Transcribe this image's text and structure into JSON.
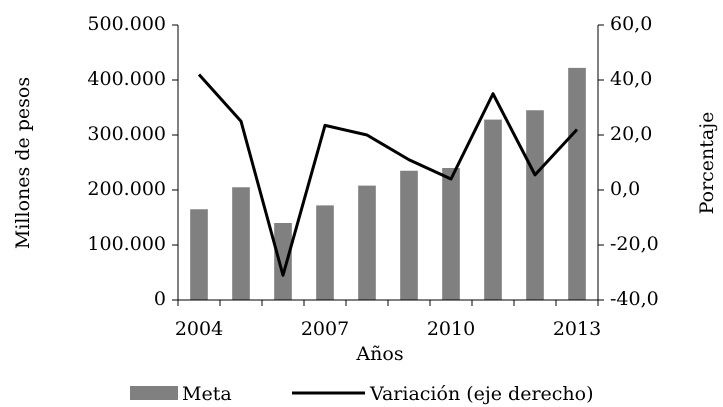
{
  "chart_data": {
    "type": "bar_line",
    "categories": [
      2004,
      null,
      null,
      2007,
      null,
      null,
      2010,
      null,
      null,
      2013
    ],
    "x_label": "Años",
    "y_label": "Millones de pesos",
    "y2_label": "Porcentaje",
    "series": [
      {
        "name": "Meta",
        "type": "bar",
        "color": "#808080",
        "values": [
          165000,
          205000,
          140000,
          172000,
          208000,
          235000,
          240000,
          328000,
          345000,
          422000
        ]
      },
      {
        "name": "Variación (eje derecho)",
        "type": "line",
        "axis": "y2",
        "color": "#000000",
        "values": [
          42,
          25,
          -31,
          23.5,
          20,
          11,
          4,
          35,
          5.5,
          22
        ]
      }
    ],
    "ylim": [
      0,
      500000
    ],
    "yticks": [
      0,
      {
        "value": 100000,
        "label": "100.000"
      },
      {
        "value": 200000,
        "label": "200.000"
      },
      {
        "value": 300000,
        "label": "300.000"
      },
      {
        "value": 400000,
        "label": "400.000"
      },
      {
        "value": 500000,
        "label": "500.000"
      }
    ],
    "y2lim": [
      -40,
      60
    ],
    "y2ticks": [
      {
        "value": -40,
        "label": "-40,0"
      },
      {
        "value": -20,
        "label": "-20,0"
      },
      {
        "value": 0,
        "label": "0,0"
      },
      {
        "value": 20,
        "label": "20,0"
      },
      {
        "value": 40,
        "label": "40,0"
      },
      {
        "value": 60,
        "label": "60,0"
      }
    ],
    "legend": "bottom"
  }
}
